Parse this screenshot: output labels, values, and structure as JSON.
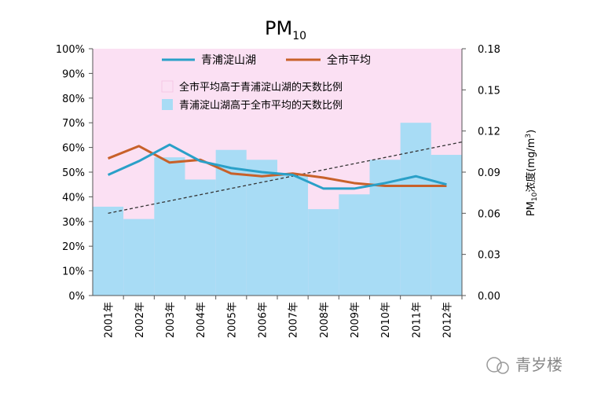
{
  "chart_data": {
    "type": "bar",
    "title": "PM",
    "title_sub": "10",
    "categories": [
      "2001年",
      "2002年",
      "2003年",
      "2004年",
      "2005年",
      "2006年",
      "2007年",
      "2008年",
      "2009年",
      "2010年",
      "2011年",
      "2012年"
    ],
    "left_axis": {
      "ylim": [
        0,
        100
      ],
      "ticks": [
        "0%",
        "10%",
        "20%",
        "30%",
        "40%",
        "50%",
        "60%",
        "70%",
        "80%",
        "90%",
        "100%"
      ]
    },
    "right_axis": {
      "label_pm": "PM",
      "label_sub": "10",
      "label_rest": "浓度(mg/m",
      "label_sup": "3",
      "label_close": ")",
      "ylim": [
        0,
        0.18
      ],
      "ticks": [
        "0.00",
        "0.03",
        "0.06",
        "0.09",
        "0.12",
        "0.15",
        "0.18"
      ]
    },
    "series": [
      {
        "name": "全市平均高于青浦淀山湖的天数比例",
        "type": "bar",
        "axis": "left",
        "color": "#fbe0f3",
        "values": [
          64,
          69,
          44,
          53,
          41,
          45,
          51,
          65,
          59,
          45,
          30,
          43
        ]
      },
      {
        "name": "青浦淀山湖高于全市平均的天数比例",
        "type": "bar",
        "axis": "left",
        "color": "#a8dcf5",
        "values": [
          36,
          31,
          56,
          47,
          59,
          55,
          49,
          35,
          41,
          55,
          70,
          57
        ]
      },
      {
        "name": "青浦淀山湖",
        "type": "line",
        "axis": "right",
        "color": "#2aa0c8",
        "values": [
          0.088,
          0.098,
          0.11,
          0.098,
          0.093,
          0.09,
          0.088,
          0.078,
          0.078,
          0.082,
          0.087,
          0.081
        ]
      },
      {
        "name": "全市平均",
        "type": "line",
        "axis": "right",
        "color": "#c8612a",
        "values": [
          0.1,
          0.109,
          0.097,
          0.099,
          0.089,
          0.087,
          0.089,
          0.086,
          0.082,
          0.08,
          0.08,
          0.08
        ]
      }
    ],
    "trendline": {
      "color": "#333333",
      "from": [
        0.5,
        0.06
      ],
      "to": [
        12,
        0.112
      ]
    },
    "legend": {
      "placement": "top"
    }
  },
  "watermark": "青岁楼"
}
